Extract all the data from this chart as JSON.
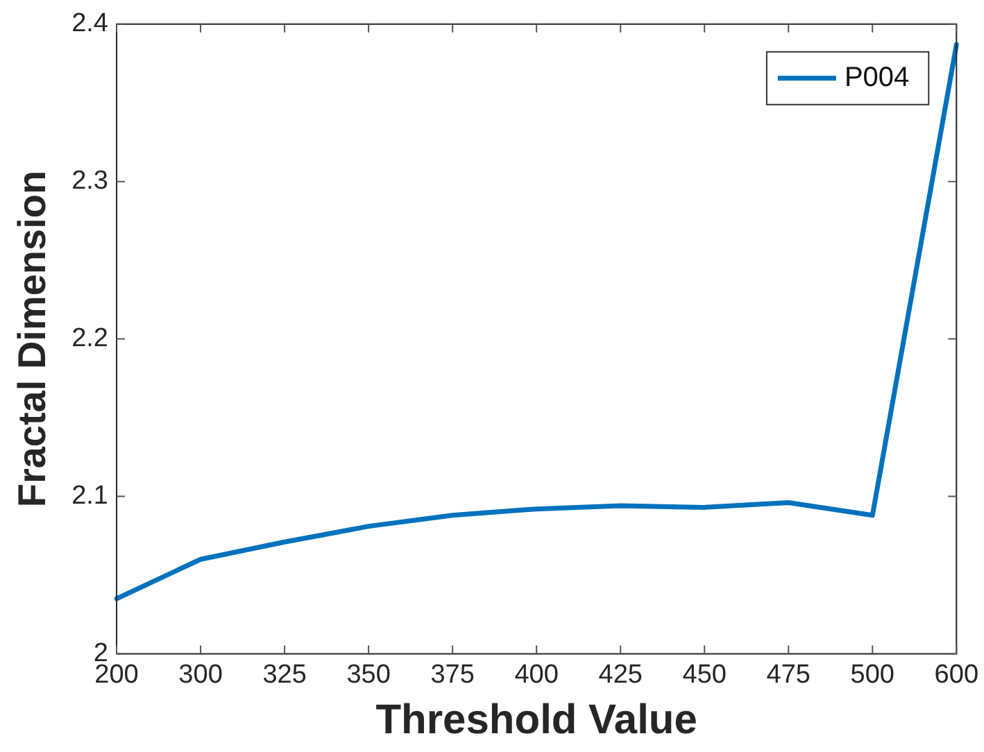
{
  "chart_data": {
    "type": "line",
    "xlabel": "Threshold Value",
    "ylabel": "Fractal Dimension",
    "categories": [
      "200",
      "300",
      "325",
      "350",
      "375",
      "400",
      "425",
      "450",
      "475",
      "500",
      "600"
    ],
    "series": [
      {
        "name": "P004",
        "color": "#0072bd",
        "values": [
          2.035,
          2.06,
          2.071,
          2.081,
          2.088,
          2.092,
          2.094,
          2.093,
          2.096,
          2.088,
          2.387
        ]
      }
    ],
    "ylim": [
      2,
      2.4
    ],
    "yticks": [
      2,
      2.1,
      2.2,
      2.3,
      2.4
    ],
    "grid": false,
    "legend": "top right",
    "marker": "none",
    "line_style": "solid"
  }
}
